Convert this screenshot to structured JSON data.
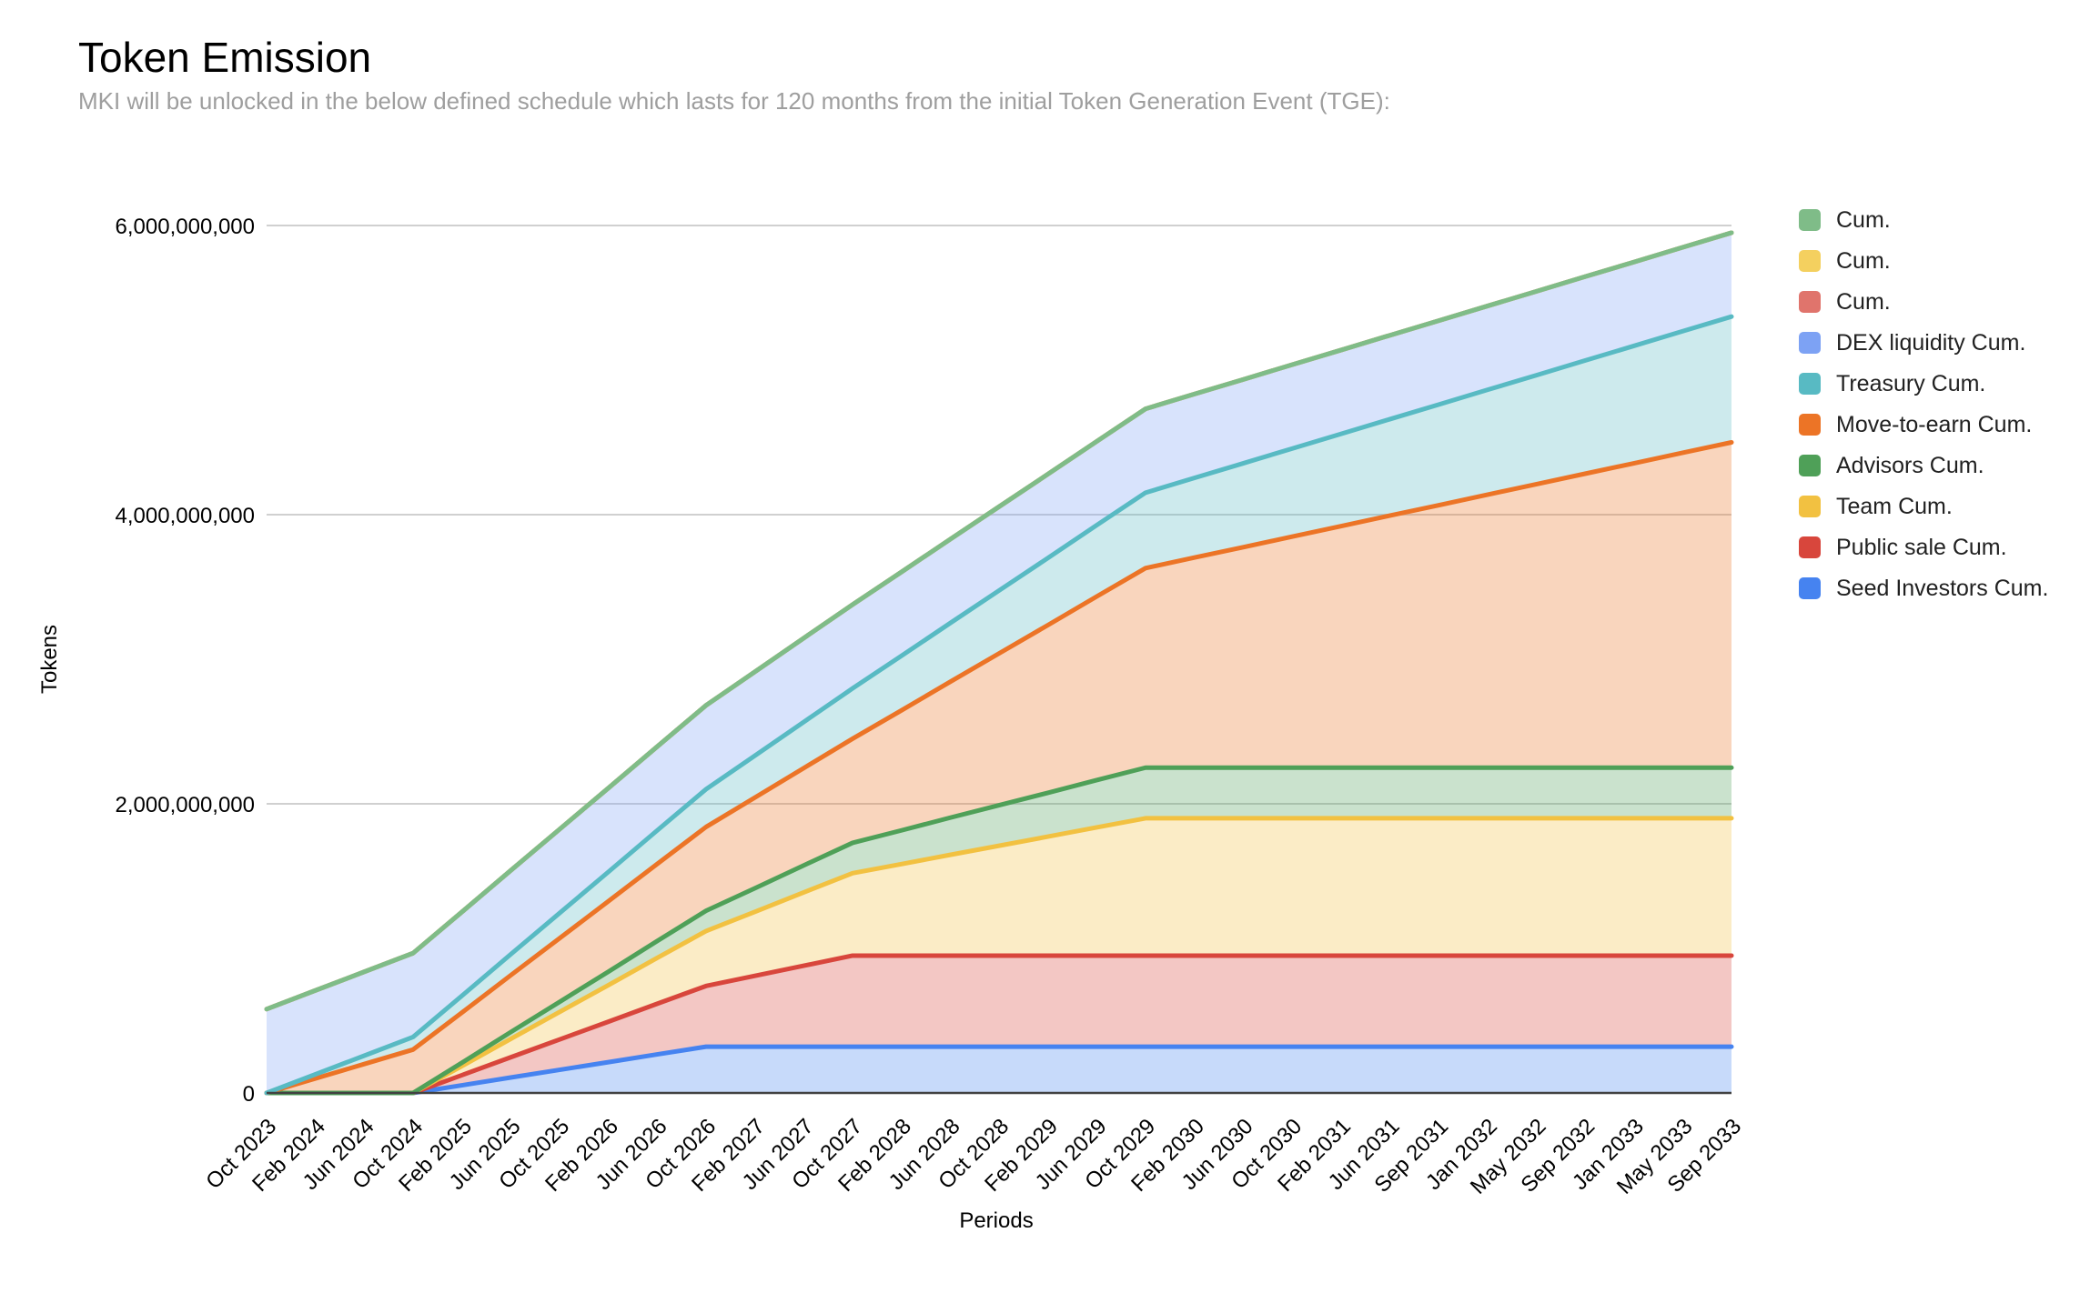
{
  "title": "Token Emission",
  "subtitle": "MKI will be unlocked in the below defined schedule which lasts for 120 months from the initial Token Generation Event (TGE):",
  "chart_data": {
    "type": "area",
    "stacked": true,
    "title": "Token Emission",
    "xlabel": "Periods",
    "ylabel": "Tokens",
    "grid": "horizontal",
    "legend_position": "right",
    "ylim": [
      0,
      6000000000
    ],
    "y_max_millions": 6000,
    "values_unit": "millions of tokens",
    "y_ticks": [
      {
        "value": 0,
        "label": "0"
      },
      {
        "value": 2000,
        "label": "2,000,000,000"
      },
      {
        "value": 4000,
        "label": "4,000,000,000"
      },
      {
        "value": 6000,
        "label": "6,000,000,000"
      }
    ],
    "x_labels": [
      "Oct 2023",
      "Feb 2024",
      "Jun 2024",
      "Oct 2024",
      "Feb 2025",
      "Jun 2025",
      "Oct 2025",
      "Feb 2026",
      "Jun 2026",
      "Oct 2026",
      "Feb 2027",
      "Jun 2027",
      "Oct 2027",
      "Feb 2028",
      "Jun 2028",
      "Oct 2028",
      "Feb 2029",
      "Jun 2029",
      "Oct 2029",
      "Feb 2030",
      "Jun 2030",
      "Oct 2030",
      "Feb 2031",
      "Jun 2031",
      "Sep 2031",
      "Jan 2032",
      "May 2032",
      "Sep 2032",
      "Jan 2033",
      "May 2033",
      "Sep 2033"
    ],
    "series": [
      {
        "name": "Seed Investors Cum.",
        "key": "seed-investors",
        "color": "#4683f0",
        "values": [
          0,
          0,
          0,
          0,
          53,
          107,
          160,
          213,
          267,
          320,
          320,
          320,
          320,
          320,
          320,
          320,
          320,
          320,
          320,
          320,
          320,
          320,
          320,
          320,
          320,
          320,
          320,
          320,
          320,
          320,
          320
        ]
      },
      {
        "name": "Public sale Cum.",
        "key": "public-sale",
        "color": "#d8463c",
        "values": [
          0,
          0,
          0,
          0,
          70,
          140,
          210,
          280,
          350,
          420,
          490,
          560,
          630,
          630,
          630,
          630,
          630,
          630,
          630,
          630,
          630,
          630,
          630,
          630,
          630,
          630,
          630,
          630,
          630,
          630,
          630
        ]
      },
      {
        "name": "Team Cum.",
        "key": "team",
        "color": "#f2c141",
        "values": [
          0,
          0,
          0,
          0,
          63,
          127,
          190,
          253,
          317,
          380,
          443,
          507,
          570,
          633,
          697,
          760,
          823,
          887,
          950,
          950,
          950,
          950,
          950,
          950,
          950,
          950,
          950,
          950,
          950,
          950,
          950
        ]
      },
      {
        "name": "Advisors Cum.",
        "key": "advisors",
        "color": "#4fa058",
        "values": [
          0,
          0,
          0,
          0,
          23,
          47,
          70,
          93,
          117,
          140,
          163,
          187,
          210,
          233,
          257,
          280,
          303,
          327,
          350,
          350,
          350,
          350,
          350,
          350,
          350,
          350,
          350,
          350,
          350,
          350,
          350
        ]
      },
      {
        "name": "Move-to-earn Cum.",
        "key": "move-to-earn",
        "color": "#ec7426",
        "values": [
          0,
          100,
          200,
          300,
          347,
          393,
          440,
          487,
          533,
          580,
          627,
          673,
          720,
          830,
          940,
          1050,
          1160,
          1270,
          1380,
          1453,
          1525,
          1598,
          1670,
          1743,
          1815,
          1888,
          1960,
          2033,
          2105,
          2178,
          2250
        ]
      },
      {
        "name": "Treasury Cum.",
        "key": "treasury",
        "color": "#58bac3",
        "values": [
          0,
          29,
          58,
          87,
          116,
          145,
          174,
          203,
          232,
          261,
          290,
          319,
          348,
          377,
          406,
          435,
          464,
          493,
          522,
          551,
          580,
          609,
          638,
          667,
          696,
          725,
          754,
          783,
          812,
          841,
          870
        ]
      },
      {
        "name": "DEX liquidity Cum.",
        "key": "dex-liquidity",
        "color": "#7da2f4",
        "values": [
          580,
          580,
          580,
          580,
          580,
          580,
          580,
          580,
          580,
          580,
          580,
          580,
          580,
          580,
          580,
          580,
          580,
          580,
          580,
          580,
          580,
          580,
          580,
          580,
          580,
          580,
          580,
          580,
          580,
          580,
          580
        ]
      },
      {
        "name": "Cum.",
        "key": "cum-salmon",
        "color": "#e0746c",
        "values": [
          0,
          0,
          0,
          0,
          0,
          0,
          0,
          0,
          0,
          0,
          0,
          0,
          0,
          0,
          0,
          0,
          0,
          0,
          0,
          0,
          0,
          0,
          0,
          0,
          0,
          0,
          0,
          0,
          0,
          0,
          0
        ]
      },
      {
        "name": "Cum.",
        "key": "cum-yellow",
        "color": "#f4d05f",
        "values": [
          0,
          0,
          0,
          0,
          0,
          0,
          0,
          0,
          0,
          0,
          0,
          0,
          0,
          0,
          0,
          0,
          0,
          0,
          0,
          0,
          0,
          0,
          0,
          0,
          0,
          0,
          0,
          0,
          0,
          0,
          0
        ]
      },
      {
        "name": "Cum.",
        "key": "cum-green",
        "color": "#7fbc88",
        "values": [
          0,
          0,
          0,
          0,
          0,
          0,
          0,
          0,
          0,
          0,
          0,
          0,
          0,
          0,
          0,
          0,
          0,
          0,
          0,
          0,
          0,
          0,
          0,
          0,
          0,
          0,
          0,
          0,
          0,
          0,
          0
        ]
      }
    ],
    "legend": [
      {
        "label": "Cum.",
        "color": "#7fbc88"
      },
      {
        "label": "Cum.",
        "color": "#f4d05f"
      },
      {
        "label": "Cum.",
        "color": "#e0746c"
      },
      {
        "label": "DEX liquidity Cum.",
        "color": "#7da2f4"
      },
      {
        "label": "Treasury Cum.",
        "color": "#58bac3"
      },
      {
        "label": "Move-to-earn Cum.",
        "color": "#ec7426"
      },
      {
        "label": "Advisors Cum.",
        "color": "#4fa058"
      },
      {
        "label": "Team Cum.",
        "color": "#f2c141"
      },
      {
        "label": "Public sale Cum.",
        "color": "#d8463c"
      },
      {
        "label": "Seed Investors Cum.",
        "color": "#4683f0"
      }
    ]
  }
}
